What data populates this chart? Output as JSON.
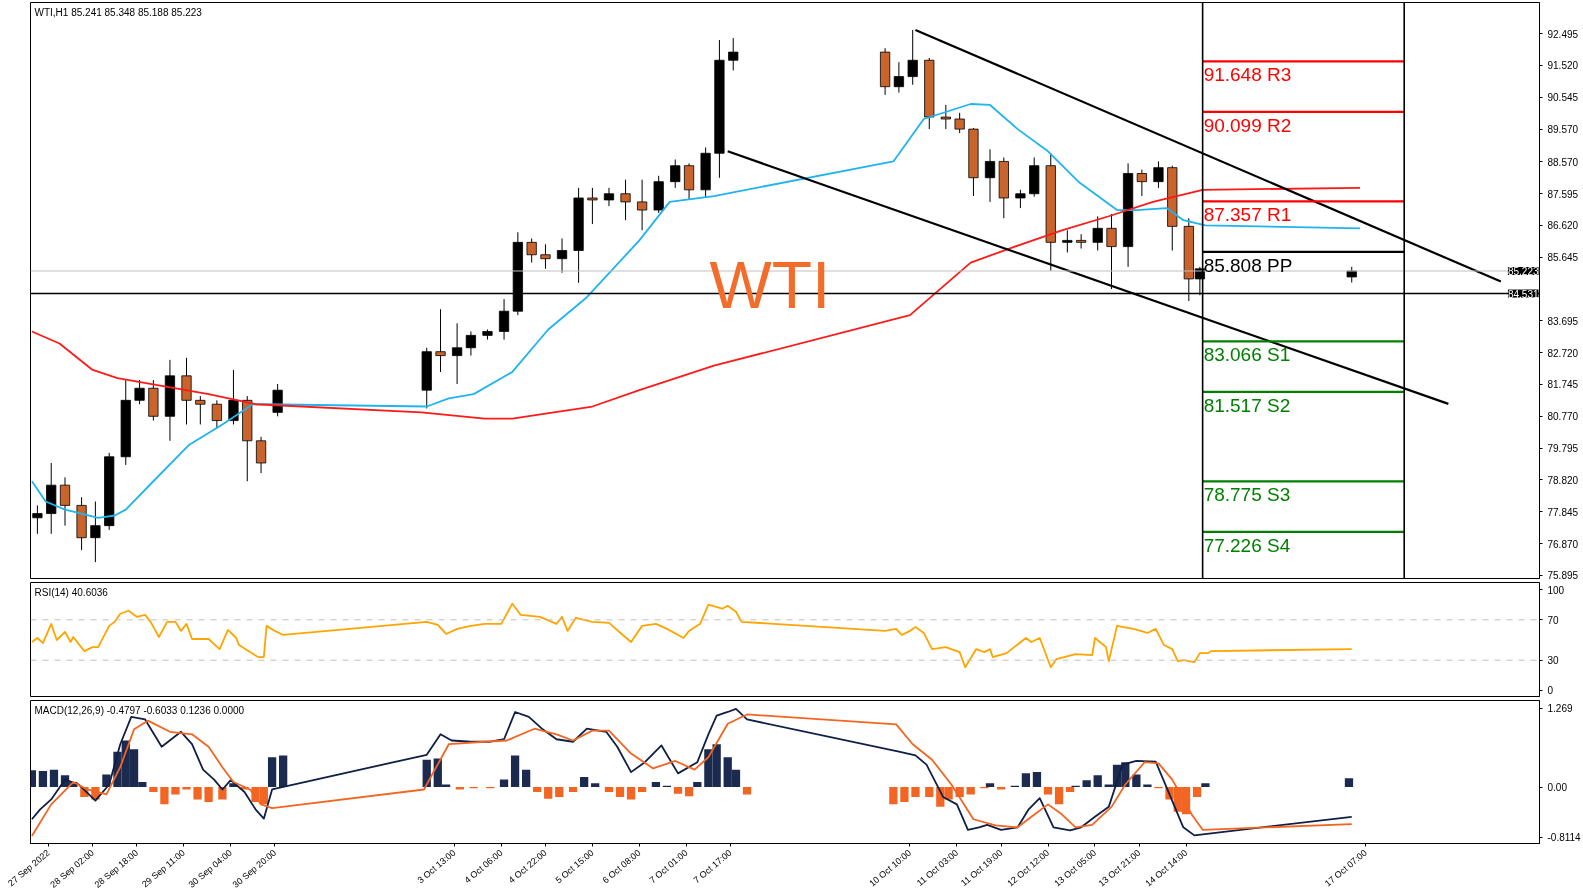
{
  "chart_data": [
    {
      "type": "candlestick",
      "title": "WTI,H1  85.241 85.348 85.188 85.223",
      "tick_labels": "y",
      "x": [
        "2022-09-27T06:00",
        "2022-09-27T11:00",
        "2022-09-27T16:00",
        "2022-09-27T22:00",
        "2022-09-28T03:00",
        "2022-09-28T08:00",
        "2022-09-28T14:00",
        "2022-09-28T19:00",
        "2022-09-29T00:00",
        "2022-09-29T06:00",
        "2022-09-29T12:00",
        "2022-09-29T17:00",
        "2022-09-29T23:00",
        "2022-09-30T05:00",
        "2022-09-30T10:00",
        "2022-09-30T15:00",
        "2022-09-30T21:00",
        "2022-10-03T03:00",
        "2022-10-03T08:00",
        "2022-10-03T14:00",
        "2022-10-03T19:00",
        "2022-10-04T01:00",
        "2022-10-04T07:00",
        "2022-10-04T12:00",
        "2022-10-04T17:00",
        "2022-10-04T22:00",
        "2022-10-05T04:00",
        "2022-10-05T10:00",
        "2022-10-05T15:00",
        "2022-10-05T21:00",
        "2022-10-06T03:00",
        "2022-10-06T09:00",
        "2022-10-06T15:00",
        "2022-10-06T21:00",
        "2022-10-07T02:00",
        "2022-10-07T08:00",
        "2022-10-07T13:00",
        "2022-10-07T18:00",
        "2022-10-10T01:00",
        "2022-10-10T06:00",
        "2022-10-10T11:00",
        "2022-10-10T17:00",
        "2022-10-10T23:00",
        "2022-10-11T04:00",
        "2022-10-11T09:00",
        "2022-10-11T15:00",
        "2022-10-11T20:00",
        "2022-10-12T02:00",
        "2022-10-12T07:00",
        "2022-10-12T13:00",
        "2022-10-12T19:00",
        "2022-10-13T00:00",
        "2022-10-13T06:00",
        "2022-10-13T11:00",
        "2022-10-13T17:00",
        "2022-10-13T22:00",
        "2022-10-14T04:00",
        "2022-10-14T09:00",
        "2022-10-14T15:00",
        "2022-10-14T19:00",
        "2022-10-17T02:00"
      ],
      "ohlc": [
        [
          77.66,
          78.04,
          77.17,
          77.79
        ],
        [
          77.79,
          79.34,
          77.17,
          78.66
        ],
        [
          78.66,
          78.9,
          77.42,
          78.04
        ],
        [
          78.04,
          78.29,
          76.67,
          77.05
        ],
        [
          77.05,
          78.16,
          76.3,
          77.42
        ],
        [
          77.42,
          79.65,
          77.29,
          79.53
        ],
        [
          79.53,
          81.88,
          79.28,
          81.26
        ],
        [
          81.26,
          81.88,
          81.14,
          81.63
        ],
        [
          81.63,
          81.88,
          80.64,
          80.77
        ],
        [
          80.77,
          82.5,
          80.02,
          82.01
        ],
        [
          82.01,
          82.56,
          80.52,
          81.26
        ],
        [
          81.26,
          81.39,
          80.52,
          81.14
        ],
        [
          81.14,
          81.26,
          80.39,
          80.64
        ],
        [
          80.64,
          82.19,
          80.52,
          81.26
        ],
        [
          81.26,
          81.39,
          78.78,
          80.02
        ],
        [
          80.02,
          80.14,
          79.03,
          79.34
        ],
        [
          80.89,
          81.76,
          80.77,
          81.57
        ],
        [
          81.57,
          82.87,
          81.01,
          82.75
        ],
        [
          82.75,
          84.05,
          82.13,
          82.63
        ],
        [
          82.63,
          83.62,
          81.76,
          82.87
        ],
        [
          82.87,
          83.37,
          82.63,
          83.25
        ],
        [
          83.25,
          83.43,
          83.12,
          83.37
        ],
        [
          83.37,
          84.36,
          83.12,
          83.99
        ],
        [
          83.99,
          86.41,
          83.87,
          86.1
        ],
        [
          86.1,
          86.22,
          85.48,
          85.72
        ],
        [
          85.72,
          86.04,
          85.29,
          85.6
        ],
        [
          85.6,
          86.22,
          85.17,
          85.85
        ],
        [
          85.85,
          87.77,
          84.86,
          87.46
        ],
        [
          87.46,
          87.77,
          86.66,
          87.4
        ],
        [
          87.4,
          87.77,
          87.21,
          87.59
        ],
        [
          87.59,
          88.02,
          86.78,
          87.34
        ],
        [
          87.34,
          88.02,
          86.47,
          87.09
        ],
        [
          87.09,
          88.14,
          87.0,
          87.96
        ],
        [
          87.96,
          88.64,
          87.77,
          88.45
        ],
        [
          88.45,
          88.52,
          87.4,
          87.71
        ],
        [
          87.71,
          89.01,
          87.46,
          88.83
        ],
        [
          88.83,
          92.3,
          88.08,
          91.68
        ],
        [
          91.68,
          92.36,
          91.37,
          91.93
        ],
        [
          91.93,
          92.05,
          90.62,
          90.87
        ],
        [
          90.87,
          91.62,
          90.69,
          91.18
        ],
        [
          91.18,
          92.61,
          90.93,
          91.68
        ],
        [
          91.68,
          91.75,
          89.57,
          89.94
        ],
        [
          89.94,
          90.31,
          89.57,
          89.88
        ],
        [
          89.88,
          90.07,
          89.45,
          89.57
        ],
        [
          89.57,
          89.6,
          87.52,
          88.08
        ],
        [
          88.08,
          88.95,
          87.34,
          88.58
        ],
        [
          88.58,
          88.7,
          86.84,
          87.46
        ],
        [
          87.46,
          87.71,
          87.15,
          87.59
        ],
        [
          87.59,
          88.7,
          87.5,
          88.45
        ],
        [
          88.45,
          88.83,
          85.23,
          86.1
        ],
        [
          86.1,
          86.47,
          85.79,
          86.16
        ],
        [
          86.16,
          86.35,
          85.91,
          86.1
        ],
        [
          86.1,
          86.9,
          85.85,
          86.53
        ],
        [
          86.53,
          86.97,
          84.67,
          85.97
        ],
        [
          85.97,
          88.52,
          85.35,
          88.21
        ],
        [
          88.21,
          88.33,
          87.52,
          87.96
        ],
        [
          87.96,
          88.58,
          87.77,
          88.39
        ],
        [
          88.39,
          88.45,
          85.85,
          86.59
        ],
        [
          86.59,
          86.84,
          84.3,
          84.98
        ],
        [
          84.98,
          85.35,
          84.48,
          85.29
        ],
        [
          85.04,
          85.35,
          84.87,
          85.22
        ]
      ],
      "xlim": [
        "2022-09-27T03:30",
        "2022-10-19T22:00"
      ],
      "ylim": [
        75.8,
        93.45
      ],
      "yticks": [
        92.495,
        {
          "value": 91.52,
          "label": "91.520"
        },
        90.545,
        {
          "value": 89.57,
          "label": "89.570"
        },
        {
          "value": 88.57,
          "label": "88.570"
        },
        87.595,
        {
          "value": 86.62,
          "label": "86.620"
        },
        85.645,
        83.695,
        {
          "value": 82.72,
          "label": "82.720"
        },
        81.745,
        {
          "value": 80.77,
          "label": "80.770"
        },
        79.795,
        {
          "value": 78.82,
          "label": "78.820"
        },
        77.845,
        {
          "value": 76.87,
          "label": "76.870"
        },
        75.895
      ],
      "series": [
        {
          "type": "line",
          "color": "#1fb4ef",
          "x": [
            "2022-09-27T04:00",
            "2022-09-27T09:00",
            "2022-09-27T16:00",
            "2022-09-27T22:00",
            "2022-09-28T04:00",
            "2022-09-28T10:00",
            "2022-09-28T14:00",
            "2022-09-29T00:00",
            "2022-09-29T13:00",
            "2022-09-30T01:00",
            "2022-09-30T12:00",
            "2022-09-30T16:00",
            "2022-10-03T03:00",
            "2022-10-03T11:00",
            "2022-10-03T20:00",
            "2022-10-04T10:00",
            "2022-10-04T23:00",
            "2022-10-05T13:00",
            "2022-10-06T08:00",
            "2022-10-06T19:00",
            "2022-10-07T11:00",
            "2022-10-10T04:00",
            "2022-10-10T15:00",
            "2022-10-11T08:00",
            "2022-10-11T15:00",
            "2022-10-12T01:00",
            "2022-10-12T12:00",
            "2022-10-12T23:00",
            "2022-10-13T13:00",
            "2022-10-13T20:00",
            "2022-10-14T07:00",
            "2022-10-14T13:00",
            "2022-10-14T21:00",
            "2022-10-17T05:00"
          ],
          "values": [
            78.78,
            78.16,
            77.91,
            77.79,
            77.66,
            77.73,
            77.91,
            78.78,
            79.9,
            80.52,
            81.14,
            81.14,
            81.07,
            81.32,
            81.45,
            82.13,
            83.43,
            84.42,
            86.16,
            87.34,
            87.52,
            88.58,
            89.88,
            90.34,
            90.31,
            89.57,
            88.89,
            87.96,
            87.09,
            87.09,
            87.15,
            86.78,
            86.62,
            86.53
          ]
        },
        {
          "type": "line",
          "color": "#ff1a1a",
          "x": [
            "2022-09-27T04:00",
            "2022-09-27T14:00",
            "2022-09-28T02:00",
            "2022-09-28T11:00",
            "2022-09-29T03:00",
            "2022-09-29T20:00",
            "2022-09-30T13:00",
            "2022-10-03T01:00",
            "2022-10-04T00:00",
            "2022-10-04T10:00",
            "2022-10-05T01:00",
            "2022-10-05T15:00",
            "2022-10-06T08:00",
            "2022-10-07T11:00",
            "2022-10-10T10:00",
            "2022-10-11T08:00",
            "2022-10-12T00:00",
            "2022-10-12T17:00",
            "2022-10-13T10:00",
            "2022-10-14T02:00",
            "2022-10-14T20:00",
            "2022-10-17T05:00"
          ],
          "values": [
            83.37,
            83.0,
            82.19,
            81.94,
            81.7,
            81.45,
            81.14,
            80.89,
            80.7,
            80.7,
            80.89,
            81.07,
            81.57,
            82.32,
            83.87,
            85.48,
            85.97,
            86.47,
            86.9,
            87.34,
            87.71,
            87.77
          ]
        },
        {
          "type": "line",
          "color": "#000000",
          "x": [
            "2022-10-10T12:00",
            "2022-10-19T08:00"
          ],
          "values": [
            92.61,
            84.9
          ]
        },
        {
          "type": "line",
          "color": "#000000",
          "x": [
            "2022-10-07T16:00",
            "2022-10-18T13:00"
          ],
          "values": [
            88.89,
            81.15
          ]
        },
        {
          "type": "line",
          "color": "#ff0000",
          "x": [
            "2022-10-14T20:00",
            "2022-10-17T21:00"
          ],
          "values": [
            91.648,
            91.648
          ]
        },
        {
          "type": "line",
          "color": "#ff0000",
          "x": [
            "2022-10-14T20:00",
            "2022-10-17T21:00"
          ],
          "values": [
            90.099,
            90.099
          ]
        },
        {
          "type": "line",
          "color": "#ff0000",
          "x": [
            "2022-10-14T20:00",
            "2022-10-17T21:00"
          ],
          "values": [
            87.357,
            87.357
          ]
        },
        {
          "type": "line",
          "color": "#000000",
          "x": [
            "2022-10-14T20:00",
            "2022-10-17T21:00"
          ],
          "values": [
            85.808,
            85.808
          ]
        },
        {
          "type": "line",
          "color": "#008000",
          "x": [
            "2022-10-14T20:00",
            "2022-10-17T21:00"
          ],
          "values": [
            83.066,
            83.066
          ]
        },
        {
          "type": "line",
          "color": "#008000",
          "x": [
            "2022-10-14T20:00",
            "2022-10-17T21:00"
          ],
          "values": [
            81.517,
            81.517
          ]
        },
        {
          "type": "line",
          "color": "#008000",
          "x": [
            "2022-10-14T20:00",
            "2022-10-17T21:00"
          ],
          "values": [
            78.775,
            78.775
          ]
        },
        {
          "type": "line",
          "color": "#008000",
          "x": [
            "2022-10-14T20:00",
            "2022-10-17T21:00"
          ],
          "values": [
            77.226,
            77.226
          ]
        }
      ],
      "ref_lines": [
        {
          "axis": "y",
          "value": 85.223,
          "label": "85.223",
          "color": "#c0c0c0"
        },
        {
          "axis": "y",
          "value": 84.531,
          "label": "84.531",
          "color": "#000000"
        },
        {
          "axis": "x",
          "value": "2022-10-14T20:00",
          "color": "#000000"
        },
        {
          "axis": "x",
          "value": "2022-10-17T21:00",
          "color": "#000000"
        }
      ],
      "annotations": [
        "WTI",
        {
          "text": "91.648  R3",
          "x": "2022-10-14T20:00",
          "y": 91.648
        },
        {
          "text": "90.099  R2",
          "x": "2022-10-14T20:00",
          "y": 90.099
        },
        {
          "text": "87.357  R1",
          "x": "2022-10-14T20:00",
          "y": 87.357
        },
        {
          "text": "85.808  PP",
          "x": "2022-10-14T20:00",
          "y": 85.808
        },
        {
          "text": "83.066  S1",
          "x": "2022-10-14T20:00",
          "y": 83.066
        },
        {
          "text": "81.517  S2",
          "x": "2022-10-14T20:00",
          "y": 81.517
        },
        {
          "text": "78.775  S3",
          "x": "2022-10-14T20:00",
          "y": 78.775
        },
        {
          "text": "77.226  S4",
          "x": "2022-10-14T20:00",
          "y": 77.226
        }
      ]
    },
    {
      "type": "line",
      "title": "RSI(14) 40.6036",
      "tick_labels": "y",
      "color": "#ffa500",
      "x": [
        "2022-09-27T04:00",
        "2022-09-27T06:00",
        "2022-09-27T08:00",
        "2022-09-27T11:00",
        "2022-09-27T13:00",
        "2022-09-27T16:00",
        "2022-09-27T18:00",
        "2022-09-27T19:00",
        "2022-09-27T23:00",
        "2022-09-28T02:00",
        "2022-09-28T04:00",
        "2022-09-28T08:00",
        "2022-09-28T10:00",
        "2022-09-28T12:00",
        "2022-09-28T15:00",
        "2022-09-28T18:00",
        "2022-09-28T21:00",
        "2022-09-28T23:00",
        "2022-09-29T02:00",
        "2022-09-29T05:00",
        "2022-09-29T08:00",
        "2022-09-29T10:00",
        "2022-09-29T12:00",
        "2022-09-29T14:00",
        "2022-09-29T20:00",
        "2022-09-30T00:00",
        "2022-09-30T03:00",
        "2022-09-30T06:00",
        "2022-09-30T07:00",
        "2022-09-30T11:00",
        "2022-09-30T14:00",
        "2022-09-30T16:00",
        "2022-09-30T17:00",
        "2022-09-30T20:00",
        "2022-09-30T23:00",
        "2022-10-03T03:00",
        "2022-10-03T07:00",
        "2022-10-03T10:00",
        "2022-10-03T14:00",
        "2022-10-03T19:00",
        "2022-10-04T00:00",
        "2022-10-04T06:00",
        "2022-10-04T10:00",
        "2022-10-04T13:00",
        "2022-10-04T20:00",
        "2022-10-05T02:00",
        "2022-10-05T04:00",
        "2022-10-05T06:00",
        "2022-10-05T09:00",
        "2022-10-05T15:00",
        "2022-10-05T21:00",
        "2022-10-06T02:00",
        "2022-10-06T05:00",
        "2022-10-06T09:00",
        "2022-10-06T14:00",
        "2022-10-06T18:00",
        "2022-10-07T00:00",
        "2022-10-07T02:00",
        "2022-10-07T06:00",
        "2022-10-07T09:00",
        "2022-10-07T14:00",
        "2022-10-07T16:00",
        "2022-10-07T19:00",
        "2022-10-07T21:00",
        "2022-10-10T01:00",
        "2022-10-10T05:00",
        "2022-10-10T07:00",
        "2022-10-10T10:00",
        "2022-10-10T12:00",
        "2022-10-10T15:00",
        "2022-10-10T18:00",
        "2022-10-10T23:00",
        "2022-10-11T04:00",
        "2022-10-11T06:00",
        "2022-10-11T10:00",
        "2022-10-11T13:00",
        "2022-10-11T15:00",
        "2022-10-11T16:00",
        "2022-10-11T21:00",
        "2022-10-12T04:00",
        "2022-10-12T06:00",
        "2022-10-12T09:00",
        "2022-10-12T13:00",
        "2022-10-12T15:00",
        "2022-10-12T22:00",
        "2022-10-13T04:00",
        "2022-10-13T05:00",
        "2022-10-13T09:00",
        "2022-10-13T10:00",
        "2022-10-13T13:00",
        "2022-10-13T19:00",
        "2022-10-14T00:00",
        "2022-10-14T03:00",
        "2022-10-14T06:00",
        "2022-10-14T09:00",
        "2022-10-14T11:00",
        "2022-10-14T13:00",
        "2022-10-14T17:00",
        "2022-10-14T19:00",
        "2022-10-14T22:00",
        "2022-10-14T23:00",
        "2022-10-17T02:00"
      ],
      "values": [
        48,
        52,
        47,
        66,
        50,
        58,
        48,
        53,
        39,
        43,
        43,
        64,
        68,
        76,
        79,
        73,
        75,
        68,
        53,
        68,
        68,
        59,
        66,
        51,
        51,
        41,
        60,
        52,
        45,
        38,
        33,
        33,
        64,
        59,
        55,
        68,
        65,
        56,
        61,
        64,
        66,
        66,
        86,
        75,
        73,
        66,
        73,
        59,
        72,
        68,
        67,
        55,
        48,
        64,
        66,
        61,
        52,
        59,
        66,
        85,
        81,
        84,
        78,
        68,
        59,
        61,
        55,
        59,
        63,
        57,
        41,
        43,
        38,
        23,
        41,
        38,
        41,
        33,
        37,
        52,
        48,
        52,
        23,
        31,
        36,
        35,
        52,
        43,
        29,
        64,
        61,
        57,
        61,
        45,
        41,
        29,
        30,
        28,
        37,
        37,
        39,
        41
      ],
      "xlim": [
        "2022-09-27T03:30",
        "2022-10-19T22:00"
      ],
      "ylim": [
        -6,
        107
      ],
      "yticks": [
        0,
        30,
        70,
        100
      ],
      "ref_lines": [
        {
          "axis": "y",
          "value": 30,
          "color": "#c0c0c0",
          "line_style": "dashed"
        },
        {
          "axis": "y",
          "value": 70,
          "color": "#c0c0c0",
          "line_style": "dashed"
        }
      ]
    },
    {
      "type": "bar",
      "title": "MACD(12,26,9) -0.4797 -0.6033 0.1236 0.0000",
      "xlim": [
        "2022-09-27T03:30",
        "2022-10-19T22:00"
      ],
      "ylim": [
        -0.911,
        1.395
      ],
      "yticks": [
        1.269,
        {
          "value": 0,
          "label": "0.00"
        },
        {
          "value": -0.8114,
          "label": "-0.8114"
        }
      ],
      "xticks": [
        {
          "value": "2022-09-27T10:00",
          "label": "27 Sep 2022"
        },
        {
          "value": "2022-09-28T02:00",
          "label": "28 Sep 02:00"
        },
        {
          "value": "2022-09-28T18:00",
          "label": "28 Sep 18:00"
        },
        {
          "value": "2022-09-29T11:00",
          "label": "29 Sep 11:00"
        },
        {
          "value": "2022-09-30T04:00",
          "label": "30 Sep 04:00"
        },
        {
          "value": "2022-09-30T20:00",
          "label": "30 Sep 20:00"
        },
        {
          "value": "2022-10-03T13:00",
          "label": "3 Oct 13:00"
        },
        {
          "value": "2022-10-04T06:00",
          "label": "4 Oct 06:00"
        },
        {
          "value": "2022-10-04T22:00",
          "label": "4 Oct 22:00"
        },
        {
          "value": "2022-10-05T15:00",
          "label": "5 Oct 15:00"
        },
        {
          "value": "2022-10-06T08:00",
          "label": "6 Oct 08:00"
        },
        {
          "value": "2022-10-07T01:00",
          "label": "7 Oct 01:00"
        },
        {
          "value": "2022-10-07T17:00",
          "label": "7 Oct 17:00"
        },
        {
          "value": "2022-10-10T10:00",
          "label": "10 Oct 10:00"
        },
        {
          "value": "2022-10-11T03:00",
          "label": "11 Oct 03:00"
        },
        {
          "value": "2022-10-11T19:00",
          "label": "11 Oct 19:00"
        },
        {
          "value": "2022-10-12T12:00",
          "label": "12 Oct 12:00"
        },
        {
          "value": "2022-10-13T05:00",
          "label": "13 Oct 05:00"
        },
        {
          "value": "2022-10-13T21:00",
          "label": "13 Oct 21:00"
        },
        {
          "value": "2022-10-14T14:00",
          "label": "14 Oct 14:00"
        },
        {
          "value": "2022-10-17T07:00",
          "label": "17 Oct 07:00"
        }
      ],
      "series": [
        {
          "type": "bar",
          "x": [
            "2022-09-27T04:00",
            "2022-09-27T08:00",
            "2022-09-27T12:00",
            "2022-09-27T16:00",
            "2022-09-27T19:00",
            "2022-09-27T23:00",
            "2022-09-28T03:00",
            "2022-09-28T07:00",
            "2022-09-28T11:00",
            "2022-09-28T14:00",
            "2022-09-28T17:00",
            "2022-09-28T20:00",
            "2022-09-29T00:00",
            "2022-09-29T04:00",
            "2022-09-29T08:00",
            "2022-09-29T12:00",
            "2022-09-29T16:00",
            "2022-09-29T20:00",
            "2022-09-30T01:00",
            "2022-09-30T05:00",
            "2022-09-30T09:00",
            "2022-09-30T13:00",
            "2022-09-30T16:00",
            "2022-09-30T19:00",
            "2022-09-30T23:00",
            "2022-10-03T03:00",
            "2022-10-03T07:00",
            "2022-10-03T10:00",
            "2022-10-03T15:00",
            "2022-10-03T20:00",
            "2022-10-04T02:00",
            "2022-10-04T07:00",
            "2022-10-04T11:00",
            "2022-10-04T15:00",
            "2022-10-04T19:00",
            "2022-10-04T23:00",
            "2022-10-05T03:00",
            "2022-10-05T08:00",
            "2022-10-05T12:00",
            "2022-10-05T16:00",
            "2022-10-05T21:00",
            "2022-10-06T01:00",
            "2022-10-06T05:00",
            "2022-10-06T09:00",
            "2022-10-06T14:00",
            "2022-10-06T18:00",
            "2022-10-06T22:00",
            "2022-10-07T02:00",
            "2022-10-07T05:00",
            "2022-10-07T09:00",
            "2022-10-07T12:00",
            "2022-10-07T16:00",
            "2022-10-07T19:00",
            "2022-10-07T23:00",
            "2022-10-10T04:00",
            "2022-10-10T08:00",
            "2022-10-10T12:00",
            "2022-10-10T17:00",
            "2022-10-10T21:00",
            "2022-10-11T00:00",
            "2022-10-11T04:00",
            "2022-10-11T08:00",
            "2022-10-11T13:00",
            "2022-10-11T15:00",
            "2022-10-11T19:00",
            "2022-10-12T00:00",
            "2022-10-12T04:00",
            "2022-10-12T08:00",
            "2022-10-12T12:00",
            "2022-10-12T16:00",
            "2022-10-12T20:00",
            "2022-10-12T22:00",
            "2022-10-13T02:00",
            "2022-10-13T06:00",
            "2022-10-13T10:00",
            "2022-10-13T13:00",
            "2022-10-13T16:00",
            "2022-10-13T20:00",
            "2022-10-14T00:00",
            "2022-10-14T04:00",
            "2022-10-14T08:00",
            "2022-10-14T11:00",
            "2022-10-14T14:00",
            "2022-10-14T18:00",
            "2022-10-14T21:00",
            "2022-10-17T01:00"
          ],
          "values": [
            0.27,
            0.26,
            0.28,
            0.19,
            0.08,
            -0.16,
            -0.2,
            0.2,
            0.57,
            0.75,
            0.61,
            0.08,
            -0.08,
            -0.28,
            -0.12,
            -0.04,
            -0.2,
            -0.24,
            -0.2,
            0.06,
            -0.04,
            -0.24,
            -0.28,
            0.48,
            0.51,
            0.44,
            0.46,
            0.04,
            -0.04,
            -0.02,
            -0.02,
            0.12,
            0.51,
            0.28,
            -0.08,
            -0.19,
            -0.16,
            -0.08,
            0.16,
            0.06,
            -0.08,
            -0.16,
            -0.2,
            -0.08,
            0.08,
            0.02,
            -0.11,
            -0.15,
            0.08,
            0.61,
            0.69,
            0.48,
            0.28,
            -0.12,
            -0.28,
            -0.24,
            -0.16,
            -0.16,
            -0.32,
            -0.2,
            -0.16,
            -0.12,
            -0.02,
            0.06,
            -0.04,
            0.02,
            0.22,
            0.24,
            -0.12,
            -0.28,
            -0.08,
            0.02,
            0.11,
            0.19,
            0.04,
            0.36,
            0.4,
            0.2,
            0.04,
            -0.02,
            -0.2,
            -0.4,
            -0.44,
            -0.16,
            0.06,
            0.14
          ],
          "colors": [
            "#1b2a4e",
            "#1b2a4e",
            "#1b2a4e",
            "#1b2a4e",
            "#1b2a4e",
            "#f26522",
            "#f26522",
            "#1b2a4e",
            "#1b2a4e",
            "#1b2a4e",
            "#1b2a4e",
            "#1b2a4e",
            "#f26522",
            "#f26522",
            "#f26522",
            "#f26522",
            "#f26522",
            "#f26522",
            "#f26522",
            "#1b2a4e",
            "#f26522",
            "#f26522",
            "#f26522",
            "#1b2a4e",
            "#1b2a4e",
            "#1b2a4e",
            "#1b2a4e",
            "#1b2a4e",
            "#f26522",
            "#f26522",
            "#f26522",
            "#1b2a4e",
            "#1b2a4e",
            "#1b2a4e",
            "#f26522",
            "#f26522",
            "#f26522",
            "#f26522",
            "#1b2a4e",
            "#1b2a4e",
            "#f26522",
            "#f26522",
            "#f26522",
            "#f26522",
            "#1b2a4e",
            "#1b2a4e",
            "#f26522",
            "#f26522",
            "#1b2a4e",
            "#1b2a4e",
            "#1b2a4e",
            "#1b2a4e",
            "#1b2a4e",
            "#f26522",
            "#f26522",
            "#f26522",
            "#f26522",
            "#f26522",
            "#f26522",
            "#f26522",
            "#f26522",
            "#f26522",
            "#f26522",
            "#1b2a4e",
            "#f26522",
            "#1b2a4e",
            "#1b2a4e",
            "#1b2a4e",
            "#f26522",
            "#f26522",
            "#f26522",
            "#1b2a4e",
            "#1b2a4e",
            "#1b2a4e",
            "#1b2a4e",
            "#1b2a4e",
            "#1b2a4e",
            "#1b2a4e",
            "#1b2a4e",
            "#f26522",
            "#f26522",
            "#f26522",
            "#f26522",
            "#f26522",
            "#1b2a4e",
            "#1b2a4e"
          ]
        },
        {
          "type": "line",
          "color": "#0f1f45",
          "x": [
            "2022-09-27T04:00",
            "2022-09-27T07:00",
            "2022-09-27T11:00",
            "2022-09-27T16:00",
            "2022-09-27T21:00",
            "2022-09-28T03:00",
            "2022-09-28T08:00",
            "2022-09-28T12:00",
            "2022-09-28T16:00",
            "2022-09-28T21:00",
            "2022-09-29T03:00",
            "2022-09-29T10:00",
            "2022-09-29T14:00",
            "2022-09-29T18:00",
            "2022-09-29T22:00",
            "2022-09-30T01:00",
            "2022-09-30T04:00",
            "2022-09-30T09:00",
            "2022-09-30T13:00",
            "2022-09-30T16:00",
            "2022-09-30T19:00",
            "2022-10-03T03:00",
            "2022-10-03T08:00",
            "2022-10-03T12:00",
            "2022-10-03T19:00",
            "2022-10-04T02:00",
            "2022-10-04T07:00",
            "2022-10-04T11:00",
            "2022-10-04T16:00",
            "2022-10-04T21:00",
            "2022-10-05T02:00",
            "2022-10-05T08:00",
            "2022-10-05T13:00",
            "2022-10-05T20:00",
            "2022-10-06T00:00",
            "2022-10-06T05:00",
            "2022-10-06T10:00",
            "2022-10-06T16:00",
            "2022-10-06T22:00",
            "2022-10-07T05:00",
            "2022-10-07T09:00",
            "2022-10-07T12:00",
            "2022-10-07T16:00",
            "2022-10-07T19:00",
            "2022-10-07T23:00",
            "2022-10-10T06:00",
            "2022-10-10T12:00",
            "2022-10-10T16:00",
            "2022-10-10T22:00",
            "2022-10-11T03:00",
            "2022-10-11T07:00",
            "2022-10-11T11:00",
            "2022-10-11T14:00",
            "2022-10-11T19:00",
            "2022-10-12T01:00",
            "2022-10-12T05:00",
            "2022-10-12T09:00",
            "2022-10-12T14:00",
            "2022-10-12T20:00",
            "2022-10-13T00:00",
            "2022-10-13T05:00",
            "2022-10-13T10:00",
            "2022-10-13T15:00",
            "2022-10-13T20:00",
            "2022-10-14T03:00",
            "2022-10-14T08:00",
            "2022-10-14T13:00",
            "2022-10-14T17:00",
            "2022-10-17T02:00"
          ],
          "values": [
            -0.52,
            -0.36,
            -0.2,
            0.12,
            0.04,
            -0.22,
            0.04,
            0.69,
            1.13,
            1.09,
            0.65,
            0.89,
            0.69,
            0.28,
            0.12,
            -0.04,
            0.11,
            -0.08,
            -0.36,
            -0.51,
            -0.04,
            0.52,
            0.85,
            0.75,
            0.73,
            0.73,
            0.77,
            1.21,
            1.13,
            0.93,
            0.77,
            0.73,
            0.94,
            0.89,
            0.65,
            0.24,
            0.4,
            0.67,
            0.22,
            0.4,
            0.85,
            1.15,
            1.21,
            1.26,
            1.09,
            0.57,
            0.51,
            0.36,
            -0.16,
            -0.28,
            -0.69,
            -0.65,
            -0.61,
            -0.69,
            -0.65,
            -0.36,
            -0.18,
            -0.65,
            -0.7,
            -0.65,
            -0.48,
            -0.32,
            0.36,
            0.42,
            0.41,
            -0.12,
            -0.65,
            -0.78,
            -0.48
          ]
        },
        {
          "type": "line",
          "color": "#f26522",
          "x": [
            "2022-09-27T04:00",
            "2022-09-27T11:00",
            "2022-09-27T19:00",
            "2022-09-28T00:00",
            "2022-09-28T07:00",
            "2022-09-28T12:00",
            "2022-09-28T17:00",
            "2022-09-28T22:00",
            "2022-09-29T06:00",
            "2022-09-29T14:00",
            "2022-09-29T20:00",
            "2022-09-30T01:00",
            "2022-09-30T05:00",
            "2022-09-30T11:00",
            "2022-09-30T15:00",
            "2022-09-30T19:00",
            "2022-10-03T02:00",
            "2022-10-03T11:00",
            "2022-10-04T00:00",
            "2022-10-04T08:00",
            "2022-10-04T18:00",
            "2022-10-05T02:00",
            "2022-10-05T08:00",
            "2022-10-05T15:00",
            "2022-10-05T21:00",
            "2022-10-06T05:00",
            "2022-10-06T13:00",
            "2022-10-06T21:00",
            "2022-10-07T04:00",
            "2022-10-07T09:00",
            "2022-10-07T16:00",
            "2022-10-07T23:00",
            "2022-10-10T05:00",
            "2022-10-10T11:00",
            "2022-10-10T18:00",
            "2022-10-11T01:00",
            "2022-10-11T09:00",
            "2022-10-11T17:00",
            "2022-10-12T01:00",
            "2022-10-12T06:00",
            "2022-10-12T12:00",
            "2022-10-12T17:00",
            "2022-10-12T22:00",
            "2022-10-13T04:00",
            "2022-10-13T11:00",
            "2022-10-13T16:00",
            "2022-10-13T23:00",
            "2022-10-14T04:00",
            "2022-10-14T09:00",
            "2022-10-14T16:00",
            "2022-10-14T20:00",
            "2022-10-17T02:00"
          ],
          "values": [
            -0.79,
            -0.28,
            0.08,
            -0.04,
            -0.12,
            0.32,
            0.93,
            1.07,
            0.89,
            0.85,
            0.65,
            0.32,
            0.08,
            -0.04,
            -0.28,
            -0.34,
            -0.04,
            0.69,
            0.73,
            0.75,
            0.94,
            0.85,
            0.75,
            0.91,
            0.91,
            0.54,
            0.3,
            0.42,
            0.28,
            0.48,
            1.02,
            1.17,
            1.01,
            0.69,
            0.44,
            0.04,
            -0.52,
            -0.62,
            -0.65,
            -0.48,
            -0.28,
            -0.44,
            -0.65,
            -0.61,
            -0.32,
            0.04,
            0.4,
            0.38,
            0.12,
            -0.44,
            -0.69,
            -0.6
          ]
        }
      ]
    }
  ]
}
